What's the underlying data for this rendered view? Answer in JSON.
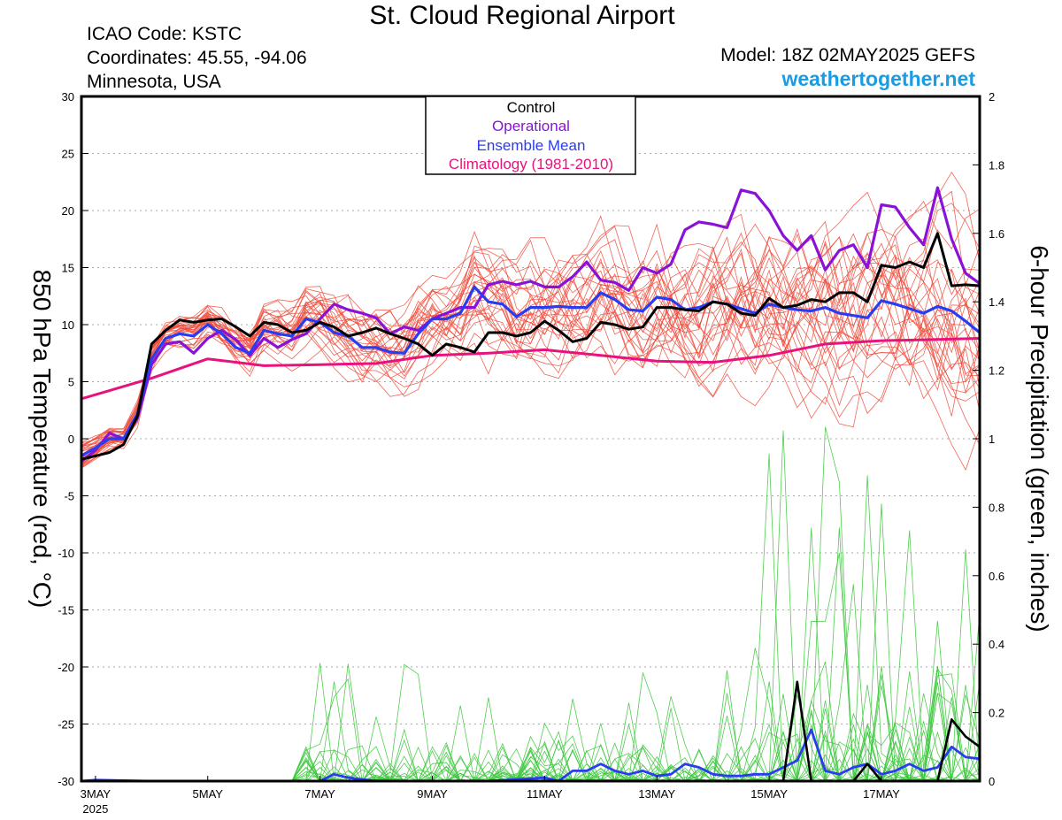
{
  "header": {
    "title": "St. Cloud Regional Airport",
    "icao": "ICAO Code: KSTC",
    "coordinates": "Coordinates: 45.55, -94.06",
    "region": "Minnesota, USA",
    "model": "Model: 18Z 02MAY2025 GEFS",
    "site": "weathertogether.net"
  },
  "colors": {
    "members_temp": "#f04a3a",
    "members_precip": "#3ec83e",
    "control": "#000000",
    "operational": "#8a12d6",
    "mean": "#2a3cf0",
    "climatology": "#e8127e",
    "gridline": "#aaaaaa"
  },
  "chart_data": {
    "type": "line",
    "title": "St. Cloud Regional Airport",
    "xlabel": "",
    "ylabel": "850 hPa Temperature (red, °C)",
    "y2label": "6-hour Precipitation (green, inches)",
    "x_unit": "days since 3 MAY 2025 00Z (6-hour steps)",
    "xlim": [
      -0.25,
      15.75
    ],
    "ylim": [
      -30,
      30
    ],
    "y2lim": [
      0,
      2
    ],
    "yticks": [
      "30",
      "25",
      "20",
      "15",
      "10",
      "5",
      "0",
      "-5",
      "-10",
      "-15",
      "-20",
      "-25",
      "-30"
    ],
    "y2ticks": [
      "2",
      "1.8",
      "1.6",
      "1.4",
      "1.2",
      "1",
      "0.8",
      "0.6",
      "0.4",
      "0.2",
      "0"
    ],
    "xticks": [
      {
        "x": 0,
        "label": "3MAY",
        "sublabel": "2025"
      },
      {
        "x": 2,
        "label": "5MAY"
      },
      {
        "x": 4,
        "label": "7MAY"
      },
      {
        "x": 6,
        "label": "9MAY"
      },
      {
        "x": 8,
        "label": "11MAY"
      },
      {
        "x": 10,
        "label": "13MAY"
      },
      {
        "x": 12,
        "label": "15MAY"
      },
      {
        "x": 14,
        "label": "17MAY"
      }
    ],
    "grid": true,
    "legend_position": "top-center",
    "legend": [
      "Control",
      "Operational",
      "Ensemble Mean",
      "Climatology (1981-2010)"
    ],
    "series": [
      {
        "name": "Control",
        "axis": "temp",
        "x": [
          -0.25,
          0,
          0.25,
          0.5,
          0.75,
          1,
          1.25,
          1.5,
          1.75,
          2,
          2.25,
          2.5,
          2.75,
          3,
          3.25,
          3.5,
          3.75,
          4,
          4.25,
          4.5,
          4.75,
          5,
          5.25,
          5.5,
          5.75,
          6,
          6.25,
          6.5,
          6.75,
          7,
          7.25,
          7.5,
          7.75,
          8,
          8.25,
          8.5,
          8.75,
          9,
          9.25,
          9.5,
          9.75,
          10,
          10.25,
          10.5,
          10.75,
          11,
          11.25,
          11.5,
          11.75,
          12,
          12.25,
          12.5,
          12.75,
          13,
          13.25,
          13.5,
          13.75,
          14,
          14.25,
          14.5,
          14.75,
          15,
          15.25,
          15.5,
          15.75
        ],
        "values": [
          -1.8,
          -1.5,
          -1.2,
          -0.5,
          2,
          8.3,
          9.5,
          10.4,
          10.2,
          10.4,
          10.5,
          9.8,
          9,
          10.2,
          10,
          9.3,
          9.5,
          10.2,
          9.8,
          9,
          9.3,
          9.7,
          9.2,
          8.8,
          8.3,
          7.3,
          8.3,
          8,
          7.6,
          9.3,
          9.3,
          9,
          9.3,
          10.3,
          9.5,
          8.5,
          8.8,
          10.2,
          10,
          9.6,
          9.8,
          11.5,
          11.5,
          11.3,
          11.2,
          12,
          11.8,
          11,
          10.8,
          12.3,
          11.5,
          11.7,
          12.2,
          12,
          12.8,
          12.8,
          12,
          15.2,
          15,
          15.5,
          15,
          18,
          13.4,
          13.5,
          13.4
        ]
      },
      {
        "name": "Operational",
        "axis": "temp",
        "x": [
          -0.25,
          0,
          0.25,
          0.5,
          0.75,
          1,
          1.25,
          1.5,
          1.75,
          2,
          2.25,
          2.5,
          2.75,
          3,
          3.25,
          3.5,
          3.75,
          4,
          4.25,
          4.5,
          4.75,
          5,
          5.25,
          5.5,
          5.75,
          6,
          6.25,
          6.5,
          6.75,
          7,
          7.25,
          7.5,
          7.75,
          8,
          8.25,
          8.5,
          8.75,
          9,
          9.25,
          9.5,
          9.75,
          10,
          10.25,
          10.5,
          10.75,
          11,
          11.25,
          11.5,
          11.75,
          12,
          12.25,
          12.5,
          12.75,
          13,
          13.25,
          13.5,
          13.75,
          14,
          14.25,
          14.5,
          14.75,
          15,
          15.25,
          15.5,
          15.75
        ],
        "values": [
          -2,
          -1,
          0.5,
          0,
          1.8,
          6.5,
          8.3,
          8.5,
          7.5,
          8.8,
          9.5,
          8.7,
          7.3,
          8.8,
          8,
          8.7,
          9.2,
          10.5,
          11.8,
          11.3,
          11,
          10.6,
          9.2,
          9.8,
          9.5,
          10.5,
          11,
          11.5,
          11.5,
          13.5,
          13.8,
          13.5,
          13.8,
          13.3,
          13.3,
          14.2,
          15.5,
          13.9,
          13.7,
          13,
          15,
          14.5,
          15.3,
          18.3,
          19,
          18.8,
          18.5,
          21.8,
          21.5,
          20,
          17.8,
          16.5,
          17.8,
          14.8,
          16.5,
          17,
          15,
          20.5,
          20.3,
          18.5,
          17,
          22,
          17.5,
          14.5,
          13.6
        ]
      },
      {
        "name": "Ensemble Mean",
        "axis": "temp",
        "x": [
          -0.25,
          0,
          0.25,
          0.5,
          0.75,
          1,
          1.25,
          1.5,
          1.75,
          2,
          2.25,
          2.5,
          2.75,
          3,
          3.25,
          3.5,
          3.75,
          4,
          4.25,
          4.5,
          4.75,
          5,
          5.25,
          5.5,
          5.75,
          6,
          6.25,
          6.5,
          6.75,
          7,
          7.25,
          7.5,
          7.75,
          8,
          8.25,
          8.5,
          8.75,
          9,
          9.25,
          9.5,
          9.75,
          10,
          10.25,
          10.5,
          10.75,
          11,
          11.25,
          11.5,
          11.75,
          12,
          12.25,
          12.5,
          12.75,
          13,
          13.25,
          13.5,
          13.75,
          14,
          14.25,
          14.5,
          14.75,
          15,
          15.25,
          15.5,
          15.75
        ],
        "values": [
          -1.5,
          -0.8,
          0,
          0,
          2.2,
          7,
          8.8,
          9.2,
          9,
          10,
          9.2,
          8,
          7.5,
          9.5,
          9.2,
          9,
          10.5,
          10.2,
          9.3,
          9,
          8,
          8,
          7.6,
          7.5,
          9.2,
          10.5,
          10.5,
          11,
          13.3,
          12,
          11.8,
          10.7,
          11.5,
          11.5,
          11.6,
          11.5,
          11.5,
          12.8,
          12.2,
          11.3,
          11.2,
          12.4,
          12.2,
          11.3,
          11.5,
          12,
          11.8,
          11.4,
          11,
          11.8,
          11.5,
          11.3,
          11.2,
          11.5,
          11,
          10.8,
          10.6,
          12.1,
          11.8,
          11.4,
          11,
          11.6,
          11.2,
          10.3,
          9.3
        ]
      },
      {
        "name": "Climatology (1981-2010)",
        "axis": "temp",
        "x": [
          -0.25,
          1,
          2,
          3,
          4,
          5,
          6,
          7,
          8,
          9,
          10,
          11,
          12,
          13,
          14,
          15,
          15.75
        ],
        "values": [
          3.5,
          5.3,
          7,
          6.4,
          6.5,
          6.6,
          7.3,
          7.5,
          7.8,
          7.3,
          6.8,
          6.7,
          7.3,
          8.3,
          8.6,
          8.7,
          8.8
        ]
      },
      {
        "name": "Control Precip",
        "axis": "precip",
        "x": [
          11.75,
          12,
          12.25,
          12.5,
          12.75,
          13,
          13.25,
          13.5,
          13.75,
          14,
          14.25,
          14.5,
          14.75,
          15,
          15.25,
          15.5,
          15.75
        ],
        "values": [
          0,
          0,
          0,
          0.29,
          0,
          0,
          0,
          0,
          0.05,
          0,
          0,
          0,
          0,
          0,
          0.18,
          0.13,
          0.1
        ]
      },
      {
        "name": "Ensemble Mean Precip",
        "axis": "precip",
        "x": [
          -0.25,
          0,
          1,
          2,
          3,
          4,
          4.25,
          4.5,
          5,
          6,
          7,
          7.5,
          8,
          8.25,
          8.5,
          8.75,
          9,
          9.25,
          9.5,
          9.75,
          10,
          10.25,
          10.5,
          10.75,
          11,
          11.25,
          11.5,
          11.75,
          12,
          12.25,
          12.5,
          12.75,
          13,
          13.25,
          13.5,
          13.75,
          14,
          14.25,
          14.5,
          14.75,
          15,
          15.25,
          15.5,
          15.75
        ],
        "values": [
          0,
          0.003,
          0,
          0,
          0,
          0,
          0.02,
          0.01,
          0,
          0,
          0,
          0.005,
          0.01,
          0,
          0.03,
          0.03,
          0.05,
          0.03,
          0.02,
          0.03,
          0.015,
          0.02,
          0.05,
          0.04,
          0.02,
          0.015,
          0.015,
          0.02,
          0.02,
          0.04,
          0.06,
          0.15,
          0.03,
          0.02,
          0.04,
          0.05,
          0.02,
          0.03,
          0.05,
          0.03,
          0.04,
          0.1,
          0.07,
          0.065
        ]
      }
    ]
  }
}
